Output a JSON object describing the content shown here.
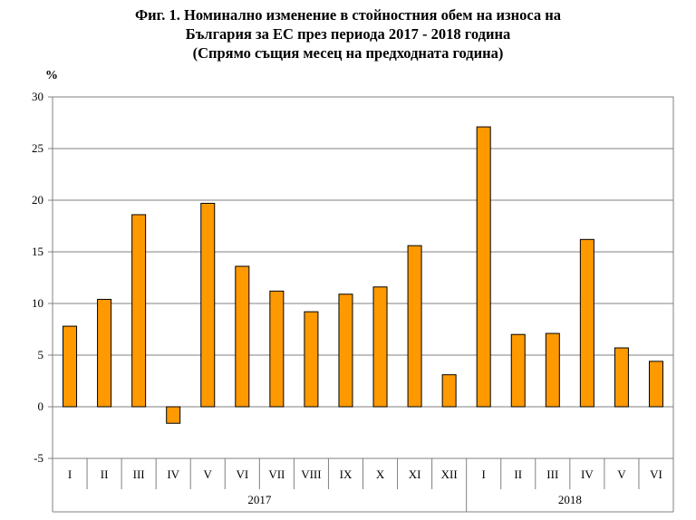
{
  "chart_data": {
    "type": "bar",
    "title_lines": [
      "Фиг. 1. Номинално изменение в стойностния обем на износа на",
      "България за ЕС през периода 2017 - 2018 година",
      "(Спрямо същия месец на предходната година)"
    ],
    "ylabel": "%",
    "xlabel": "",
    "ylim": [
      -5,
      30
    ],
    "yticks": [
      "-5",
      "0",
      "5",
      "10",
      "15",
      "20",
      "25",
      "30"
    ],
    "grid": true,
    "legend": "none",
    "bar_color": "#FF9900",
    "categories": [
      "I",
      "II",
      "III",
      "IV",
      "V",
      "VI",
      "VII",
      "VIII",
      "IX",
      "X",
      "XI",
      "XII",
      "I",
      "II",
      "III",
      "IV",
      "V",
      "VI"
    ],
    "values": [
      7.8,
      10.4,
      18.6,
      -1.6,
      19.7,
      13.6,
      11.2,
      9.2,
      10.9,
      11.6,
      15.6,
      3.1,
      27.1,
      7.0,
      7.1,
      16.2,
      5.7,
      4.4
    ],
    "groups": [
      {
        "label": "2017",
        "count": 12
      },
      {
        "label": "2018",
        "count": 6
      }
    ]
  }
}
